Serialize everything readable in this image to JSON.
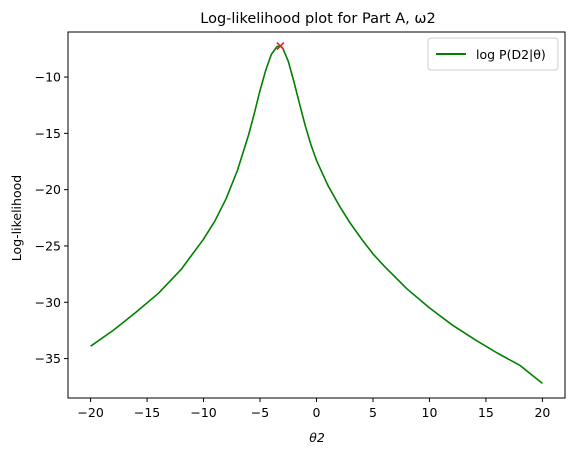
{
  "chart_data": {
    "type": "line",
    "title": "Log-likelihood plot for Part A, ω2",
    "xlabel": "θ2",
    "ylabel": "Log-likelihood",
    "xlim": [
      -22.0,
      22.0
    ],
    "ylim": [
      -38.5,
      -6.0
    ],
    "xticks": [
      -20,
      -15,
      -10,
      -5,
      0,
      5,
      10,
      15,
      20
    ],
    "yticks": [
      -35,
      -30,
      -25,
      -20,
      -15,
      -10
    ],
    "xtick_labels": [
      "−20",
      "−15",
      "−10",
      "−5",
      "0",
      "5",
      "10",
      "15",
      "20"
    ],
    "ytick_labels": [
      "−35",
      "−30",
      "−25",
      "−20",
      "−15",
      "−10"
    ],
    "grid": false,
    "legend_position": "top-right",
    "series": [
      {
        "name": "log P(D2|θ)",
        "color": "#008000",
        "x": [
          -20,
          -18,
          -16,
          -14,
          -12,
          -10,
          -9,
          -8,
          -7,
          -6,
          -5.5,
          -5,
          -4.5,
          -4,
          -3.5,
          -3.2,
          -3,
          -2.5,
          -2,
          -1.5,
          -1,
          -0.5,
          0,
          1,
          2,
          3,
          4,
          5,
          6,
          8,
          10,
          12,
          14,
          16,
          18,
          20
        ],
        "y": [
          -33.9,
          -32.5,
          -30.9,
          -29.2,
          -27.1,
          -24.4,
          -22.8,
          -20.8,
          -18.3,
          -15.1,
          -13.2,
          -11.2,
          -9.4,
          -8.0,
          -7.3,
          -7.25,
          -7.4,
          -8.6,
          -10.4,
          -12.4,
          -14.3,
          -16.0,
          -17.4,
          -19.6,
          -21.4,
          -23.0,
          -24.4,
          -25.7,
          -26.8,
          -28.8,
          -30.5,
          -32.0,
          -33.3,
          -34.5,
          -35.6,
          -37.2
        ]
      }
    ],
    "marker": {
      "x": -3.2,
      "y": -7.25,
      "symbol": "x",
      "color": "#d62728"
    }
  }
}
